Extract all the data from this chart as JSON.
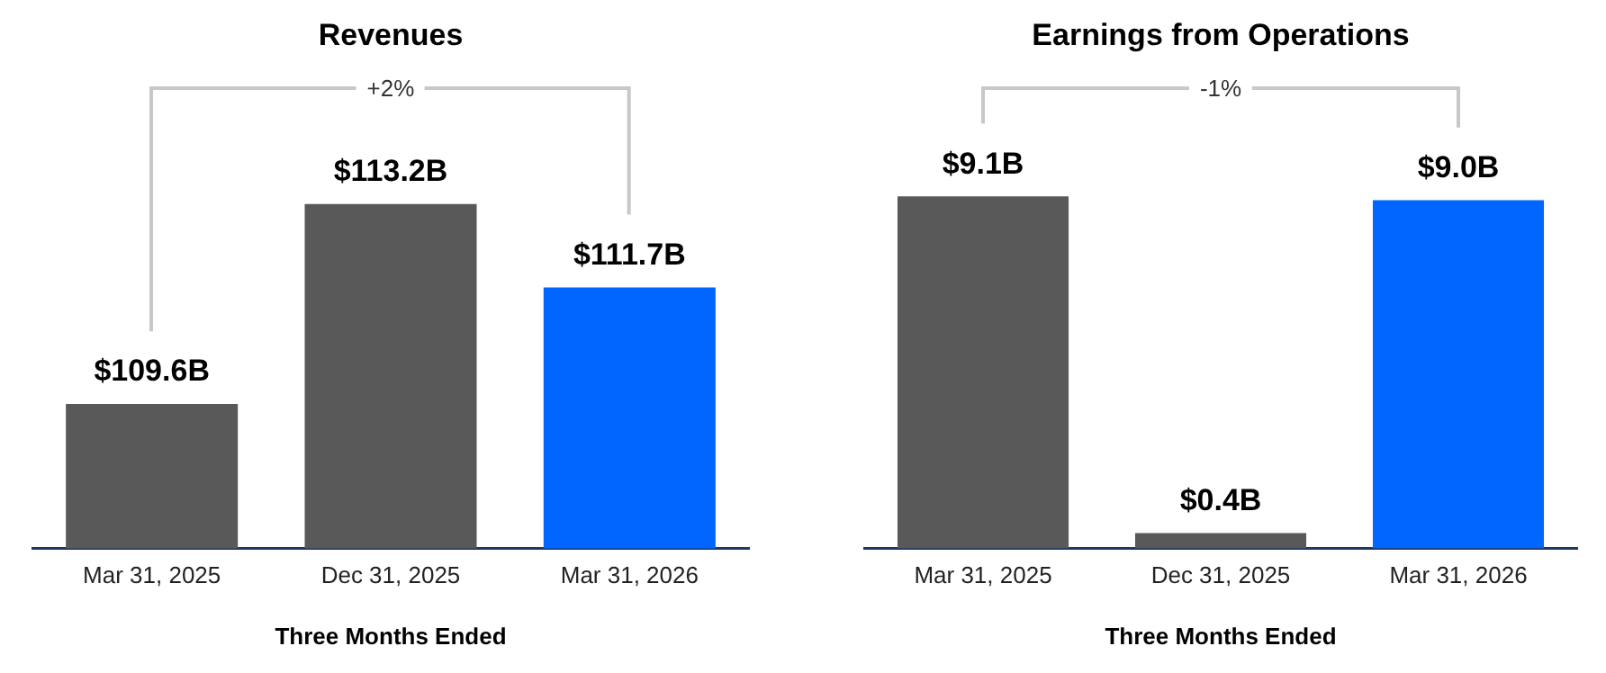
{
  "chart_data": [
    {
      "type": "bar",
      "title": "Revenues",
      "xlabel": "Three Months Ended",
      "categories": [
        "Mar 31, 2025",
        "Dec 31, 2025",
        "Mar 31, 2026"
      ],
      "values": [
        109.6,
        113.2,
        111.7
      ],
      "colors": [
        "#595959",
        "#595959",
        "#0066ff"
      ],
      "value_labels": [
        "$109.6B",
        "$113.2B",
        "$111.7B"
      ],
      "ylim": [
        107,
        115.5
      ],
      "tick_labels": "x",
      "annotations": [
        "+2%"
      ]
    },
    {
      "type": "bar",
      "title": "Earnings from Operations",
      "xlabel": "Three Months Ended",
      "categories": [
        "Mar 31, 2025",
        "Dec 31, 2025",
        "Mar 31, 2026"
      ],
      "values": [
        9.1,
        0.4,
        9.0
      ],
      "colors": [
        "#595959",
        "#595959",
        "#0066ff"
      ],
      "value_labels": [
        "$9.1B",
        "$0.4B",
        "$9.0B"
      ],
      "ylim": [
        0,
        12.2
      ],
      "tick_labels": "x",
      "annotations": [
        "-1%"
      ]
    }
  ]
}
